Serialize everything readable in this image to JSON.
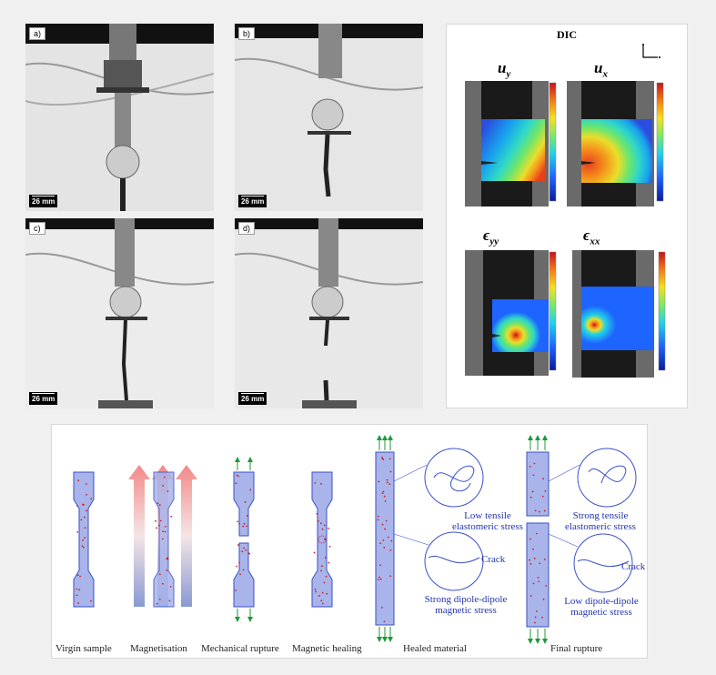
{
  "photos": {
    "a": {
      "label": "a)",
      "scale": "26 mm"
    },
    "b": {
      "label": "b)",
      "scale": "26 mm"
    },
    "c": {
      "label": "c)",
      "scale": "26 mm"
    },
    "d": {
      "label": "d)",
      "scale": "26 mm"
    }
  },
  "dic": {
    "title": "DIC",
    "uy": {
      "sym": "u",
      "sub": "y"
    },
    "ux": {
      "sym": "u",
      "sub": "x"
    },
    "eyy": {
      "sym": "ϵ",
      "sub": "yy"
    },
    "exx": {
      "sym": "ϵ",
      "sub": "xx"
    },
    "colormap": [
      "#0a1a9a",
      "#1e64ff",
      "#22d2e6",
      "#7be86a",
      "#f5e11e",
      "#f57b14",
      "#c8101e"
    ],
    "fields": {
      "uy": [
        "#2b4de0",
        "#18a3ee",
        "#2fd8c8",
        "#6fe66a",
        "#e9de2a",
        "#f5931c",
        "#e8401c"
      ],
      "ux": [
        "#e8401c",
        "#f5931c",
        "#e9de2a",
        "#6fe66a",
        "#2fd8c8",
        "#18a3ee",
        "#2b4de0"
      ]
    }
  },
  "schema": {
    "captions": [
      "Virgin sample",
      "Magnetisation",
      "Mechanical rupture",
      "Magnetic healing",
      "Healed material",
      "Final rupture"
    ],
    "healed_notes": {
      "top": "Low tensile elastomeric stress",
      "bottom": "Strong dipole-dipole magnetic stress",
      "crack": "Crack"
    },
    "final_notes": {
      "top": "Strong tensile elastomeric stress",
      "bottom": "Low dipole-dipole magnetic stress",
      "crack": "Crack"
    },
    "colors": {
      "sample_fill": "#a9b4ea",
      "sample_stroke": "#3a4fc8",
      "particle": "#cc2222",
      "arrow_green": "#1c9a3a",
      "magnet_arrow": "#e85a5a"
    }
  }
}
